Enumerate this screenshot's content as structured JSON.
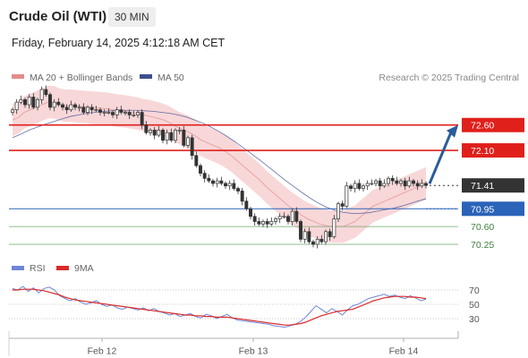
{
  "header": {
    "title": "Crude Oil (WTI)",
    "timeframe": "30 MIN",
    "timestamp": "Friday, February 14, 2025 4:12:18 AM CET"
  },
  "credit": "Research © 2025 Trading Central",
  "colors": {
    "resistance": "#e0201b",
    "support": "#6fa86b",
    "pivot": "#2a63b8",
    "current": "#333333",
    "ma50": "#3d4f8f",
    "bollinger_fill": "#f6cdd0",
    "arrow": "#2a5b9a",
    "rsi": "#6f86d6",
    "rsi_ma": "#d92a2a"
  },
  "chart_data": [
    {
      "type": "candlestick",
      "legend": [
        "MA 20 + Bollinger Bands",
        "MA 50"
      ],
      "x_ticks": [
        "Feb 12",
        "Feb 13",
        "Feb 14"
      ],
      "ylim": [
        69.95,
        73.3
      ],
      "levels": [
        {
          "label": "72.60",
          "value": 72.6,
          "kind": "resistance"
        },
        {
          "label": "72.10",
          "value": 72.1,
          "kind": "resistance"
        },
        {
          "label": "71.41",
          "value": 71.41,
          "kind": "current"
        },
        {
          "label": "70.95",
          "value": 70.95,
          "kind": "pivot"
        },
        {
          "label": "70.60",
          "value": 70.6,
          "kind": "support"
        },
        {
          "label": "70.25",
          "value": 70.25,
          "kind": "support"
        }
      ],
      "closes": [
        72.9,
        73.05,
        73.1,
        73.0,
        73.15,
        72.95,
        73.1,
        73.3,
        73.2,
        72.95,
        73.05,
        73.0,
        72.95,
        72.9,
        73.0,
        72.95,
        72.95,
        72.85,
        72.95,
        72.9,
        72.9,
        72.85,
        72.85,
        72.85,
        72.8,
        72.9,
        72.85,
        72.85,
        72.8,
        72.8,
        72.85,
        72.6,
        72.45,
        72.5,
        72.4,
        72.5,
        72.3,
        72.45,
        72.3,
        72.5,
        72.5,
        72.2,
        72.35,
        72.0,
        71.8,
        71.65,
        71.55,
        71.5,
        71.45,
        71.5,
        71.45,
        71.4,
        71.45,
        71.35,
        71.3,
        71.1,
        70.95,
        70.8,
        70.7,
        70.65,
        70.7,
        70.65,
        70.7,
        70.75,
        70.8,
        70.8,
        70.7,
        70.9,
        70.7,
        70.35,
        70.5,
        70.3,
        70.25,
        70.35,
        70.3,
        70.5,
        70.4,
        70.75,
        71.05,
        71.0,
        71.4,
        71.35,
        71.45,
        71.35,
        71.4,
        71.45,
        71.45,
        71.5,
        71.4,
        71.45,
        71.55,
        71.5,
        71.45,
        71.5,
        71.4,
        71.5,
        71.45,
        71.4,
        71.45,
        71.41
      ],
      "ma20": [
        72.7,
        72.75,
        72.85,
        72.9,
        72.95,
        73.0,
        73.05,
        73.05,
        73.0,
        72.98,
        72.98,
        72.97,
        72.96,
        72.95,
        72.94,
        72.93,
        72.92,
        72.9,
        72.88,
        72.87,
        72.85,
        72.83,
        72.8,
        72.78,
        72.75,
        72.72,
        72.68,
        72.62,
        72.55,
        72.5,
        72.45,
        72.38,
        72.3,
        72.25,
        72.2,
        72.15,
        72.08,
        72.0,
        71.9,
        71.8,
        71.7,
        71.6,
        71.5,
        71.38,
        71.28,
        71.18,
        71.08,
        70.98,
        70.9,
        70.82,
        70.75,
        70.7,
        70.65,
        70.62,
        70.6,
        70.6,
        70.6,
        70.65,
        70.7,
        70.8,
        70.9,
        71.0,
        71.05,
        71.1,
        71.15,
        71.2,
        71.25,
        71.3,
        71.35,
        71.4,
        71.45
      ],
      "ma50": [
        72.35,
        72.42,
        72.5,
        72.56,
        72.62,
        72.67,
        72.72,
        72.77,
        72.8,
        72.83,
        72.85,
        72.87,
        72.88,
        72.89,
        72.89,
        72.89,
        72.88,
        72.87,
        72.85,
        72.83,
        72.8,
        72.76,
        72.7,
        72.64,
        72.56,
        72.47,
        72.37,
        72.26,
        72.14,
        72.02,
        71.9,
        71.77,
        71.64,
        71.51,
        71.39,
        71.27,
        71.16,
        71.06,
        70.98,
        70.92,
        70.88,
        70.86,
        70.86,
        70.87,
        70.9,
        70.93,
        70.96,
        71.0,
        71.05,
        71.1,
        71.15
      ],
      "projection_target": 72.6
    },
    {
      "type": "line",
      "legend": [
        "RSI",
        "9MA"
      ],
      "yticks": [
        70,
        50,
        30
      ],
      "ylim": [
        10,
        80
      ],
      "series": [
        {
          "name": "RSI",
          "values": [
            72,
            70,
            75,
            68,
            73,
            66,
            72,
            74,
            70,
            62,
            58,
            55,
            58,
            53,
            50,
            52,
            55,
            50,
            47,
            49,
            45,
            43,
            46,
            44,
            42,
            45,
            41,
            44,
            40,
            38,
            35,
            37,
            33,
            35,
            37,
            33,
            31,
            36,
            34,
            30,
            33,
            36,
            31,
            28,
            27,
            26,
            25,
            24,
            23,
            22,
            20,
            19,
            18,
            20,
            22,
            26,
            32,
            40,
            48,
            43,
            38,
            44,
            40,
            35,
            42,
            48,
            50,
            54,
            58,
            60,
            62,
            64,
            61,
            63,
            60,
            58,
            62,
            59,
            55,
            57
          ]
        },
        {
          "name": "9MA",
          "values": [
            70,
            70,
            71,
            71,
            71,
            70,
            69,
            67,
            65,
            63,
            60,
            58,
            56,
            55,
            54,
            53,
            52,
            51,
            50,
            49,
            48,
            47,
            46,
            45,
            44,
            43,
            42,
            41,
            40,
            39,
            38,
            37,
            36,
            35,
            35,
            34,
            34,
            33,
            33,
            32,
            32,
            32,
            31,
            30,
            29,
            28,
            27,
            26,
            25,
            24,
            23,
            22,
            21,
            21,
            22,
            23,
            25,
            28,
            31,
            34,
            36,
            38,
            40,
            41,
            42,
            43,
            46,
            49,
            52,
            55,
            57,
            59,
            60,
            61,
            61,
            61,
            60,
            60,
            59,
            58
          ]
        }
      ]
    }
  ]
}
